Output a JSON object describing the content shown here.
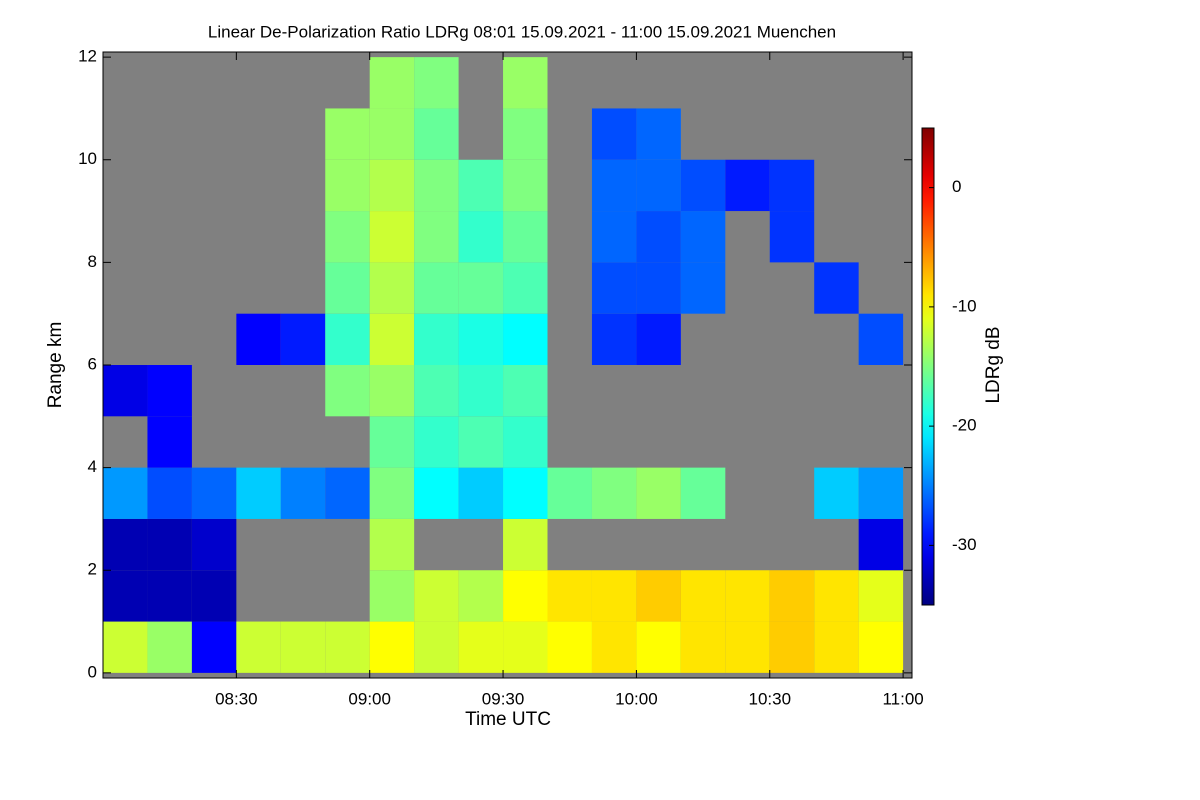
{
  "chart_data": {
    "type": "heatmap",
    "title": "Linear De-Polarization Ratio LDRg   08:01 15.09.2021 - 11:00 15.09.2021 Muenchen",
    "x_label": "Time UTC",
    "y_label": "Range km",
    "colorbar_label": "LDRg dB",
    "x": [
      485,
      495,
      505,
      515,
      525,
      535,
      545,
      555,
      565,
      575,
      585,
      595,
      605,
      615,
      625,
      635,
      645,
      655
    ],
    "y": [
      0.5,
      1.5,
      2.5,
      3.5,
      4.5,
      5.5,
      6.5,
      7.5,
      8.5,
      9.5,
      10.5,
      11.5
    ],
    "z": [
      [
        -12,
        -14,
        -30,
        -12,
        -12,
        -12,
        -10,
        -12,
        -11,
        -11,
        -10,
        -9,
        -10,
        -9,
        -9,
        -8,
        -9,
        -10
      ],
      [
        -33,
        -33,
        -33,
        null,
        null,
        null,
        -14,
        -12,
        -13,
        -10,
        -9,
        -9,
        -8,
        -9,
        -9,
        -8,
        -9,
        -11
      ],
      [
        -33,
        -33,
        -32,
        null,
        null,
        null,
        -13,
        null,
        null,
        -12,
        null,
        null,
        null,
        null,
        null,
        null,
        null,
        -31
      ],
      [
        -24,
        -27,
        -26,
        -22,
        -25,
        -26,
        -15,
        -20,
        -22,
        -20,
        -16,
        -15,
        -14,
        -16,
        null,
        null,
        -22,
        -24
      ],
      [
        null,
        -30,
        null,
        null,
        null,
        null,
        -16,
        -18,
        -17,
        -18,
        null,
        null,
        null,
        null,
        null,
        null,
        null,
        null
      ],
      [
        -31,
        -30,
        null,
        null,
        null,
        -15,
        -14,
        -17,
        -18,
        -17,
        null,
        null,
        null,
        null,
        null,
        null,
        null,
        null
      ],
      [
        null,
        null,
        null,
        -30,
        -29,
        -18,
        -12,
        -18,
        -19,
        -20,
        null,
        -28,
        -29,
        null,
        null,
        null,
        null,
        -27
      ],
      [
        null,
        null,
        null,
        null,
        null,
        -16,
        -13,
        -16,
        -16,
        -17,
        null,
        -27,
        -27,
        -26,
        null,
        null,
        -28,
        null
      ],
      [
        null,
        null,
        null,
        null,
        null,
        -15,
        -12,
        -15,
        -18,
        -16,
        null,
        -26,
        -27,
        -26,
        null,
        -28,
        null,
        null
      ],
      [
        null,
        null,
        null,
        null,
        null,
        -14,
        -13,
        -15,
        -17,
        -15,
        null,
        -26,
        -26,
        -27,
        -29,
        -28,
        null,
        null
      ],
      [
        null,
        null,
        null,
        null,
        null,
        -14,
        -14,
        -16,
        null,
        -15,
        null,
        -27,
        -26,
        null,
        null,
        null,
        null,
        null
      ],
      [
        null,
        null,
        null,
        null,
        null,
        null,
        -14,
        -15,
        null,
        -14,
        null,
        null,
        null,
        null,
        null,
        null,
        null,
        null
      ]
    ],
    "cell_width": 10,
    "cell_height": 1,
    "xlim": [
      480,
      662
    ],
    "ylim": [
      -0.1,
      12.1
    ],
    "xticks": [
      {
        "value": 510,
        "label": "08:30"
      },
      {
        "value": 540,
        "label": "09:00"
      },
      {
        "value": 570,
        "label": "09:30"
      },
      {
        "value": 600,
        "label": "10:00"
      },
      {
        "value": 630,
        "label": "10:30"
      },
      {
        "value": 660,
        "label": "11:00"
      }
    ],
    "yticks": [
      0,
      2,
      4,
      6,
      8,
      10,
      12
    ],
    "clim": [
      -35,
      5
    ],
    "cticks": [
      0,
      -10,
      -20,
      -30
    ],
    "colormap": "jet",
    "missing_color": "#808080"
  }
}
